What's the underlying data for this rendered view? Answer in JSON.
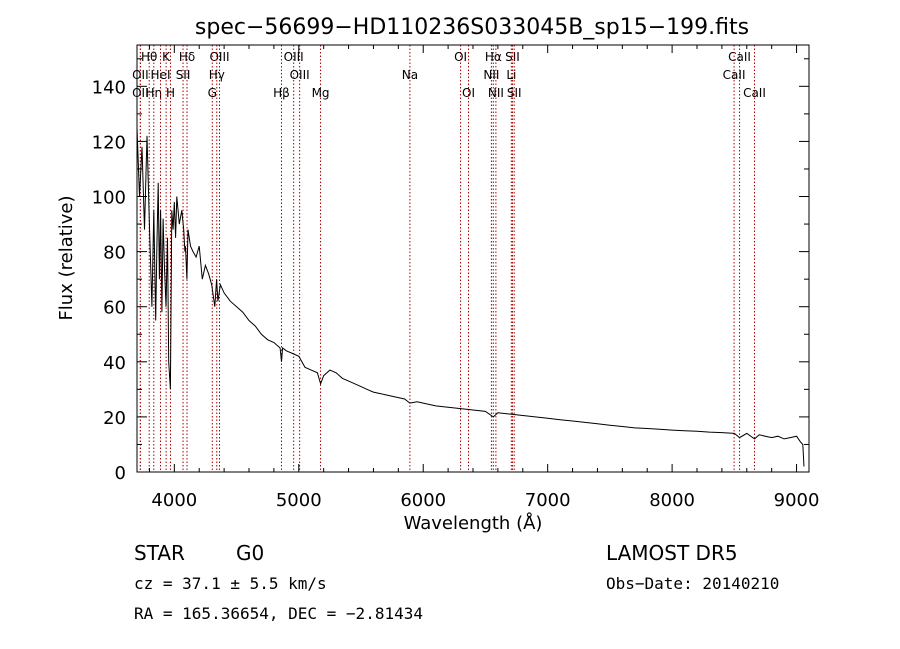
{
  "chart_data": {
    "type": "line",
    "title": "spec−56699−HD110236S033045B_sp15−199.fits",
    "xlabel": "Wavelength (Å)",
    "ylabel": "Flux (relative)",
    "xlim": [
      3700,
      9100
    ],
    "ylim": [
      0,
      155
    ],
    "xticks": [
      4000,
      5000,
      6000,
      7000,
      8000,
      9000
    ],
    "yticks": [
      0,
      20,
      40,
      60,
      80,
      100,
      120,
      140
    ],
    "xtick_labels": [
      "4000",
      "5000",
      "6000",
      "7000",
      "8000",
      "9000"
    ],
    "ytick_labels": [
      "0",
      "20",
      "40",
      "60",
      "80",
      "100",
      "120",
      "140"
    ],
    "grid": false,
    "series": [
      {
        "color": "#000000",
        "x": [
          3700,
          3720,
          3740,
          3760,
          3780,
          3800,
          3820,
          3835,
          3850,
          3860,
          3870,
          3880,
          3890,
          3900,
          3910,
          3920,
          3933,
          3945,
          3955,
          3968,
          3980,
          3990,
          4000,
          4010,
          4020,
          4040,
          4060,
          4075,
          4085,
          4090,
          4101,
          4110,
          4130,
          4150,
          4175,
          4200,
          4225,
          4250,
          4275,
          4300,
          4325,
          4340,
          4350,
          4370,
          4400,
          4450,
          4500,
          4550,
          4600,
          4650,
          4700,
          4750,
          4800,
          4850,
          4861,
          4870,
          4900,
          4950,
          5000,
          5050,
          5100,
          5150,
          5175,
          5200,
          5250,
          5300,
          5350,
          5400,
          5450,
          5500,
          5550,
          5600,
          5650,
          5700,
          5750,
          5800,
          5850,
          5893,
          5950,
          6000,
          6100,
          6200,
          6300,
          6400,
          6500,
          6563,
          6600,
          6700,
          6800,
          6900,
          7000,
          7100,
          7200,
          7300,
          7400,
          7500,
          7600,
          7700,
          7800,
          7900,
          8000,
          8100,
          8200,
          8300,
          8400,
          8500,
          8542,
          8600,
          8662,
          8700,
          8750,
          8800,
          8850,
          8900,
          8950,
          9000,
          9030,
          9050,
          9060
        ],
        "y": [
          125,
          100,
          118,
          88,
          122,
          90,
          60,
          95,
          55,
          82,
          105,
          70,
          95,
          58,
          92,
          75,
          60,
          85,
          40,
          30,
          95,
          88,
          98,
          85,
          100,
          90,
          95,
          88,
          80,
          82,
          70,
          88,
          82,
          80,
          78,
          82,
          70,
          75,
          72,
          68,
          60,
          70,
          62,
          68,
          65,
          62,
          60,
          58,
          55,
          53,
          50,
          48,
          47,
          45,
          40,
          45,
          44,
          43,
          42,
          38,
          37,
          36,
          32,
          35,
          37,
          36,
          34,
          33,
          32,
          31,
          30,
          29,
          28.5,
          28,
          27.5,
          27,
          26.5,
          25,
          25.5,
          25,
          24,
          23.5,
          23,
          22.5,
          22,
          20,
          21.5,
          21,
          20.5,
          20,
          19.5,
          19,
          18.5,
          18,
          17.5,
          17,
          16.5,
          16,
          15.8,
          15.5,
          15.2,
          15,
          14.8,
          14.5,
          14.3,
          14,
          12.5,
          14,
          12,
          13.5,
          13,
          12.5,
          13,
          12,
          12.5,
          13,
          11,
          10,
          2
        ]
      }
    ],
    "line_color": "#aa0000",
    "lines": [
      {
        "label": "Hθ",
        "x": 3798,
        "row": 1
      },
      {
        "label": "OII",
        "x": 3727,
        "row": 2
      },
      {
        "label": "OII",
        "x": 3727,
        "row": 3
      },
      {
        "label": "Hη",
        "x": 3835,
        "row": 3
      },
      {
        "label": "K",
        "x": 3934,
        "row": 1
      },
      {
        "label": "HeI",
        "x": 3889,
        "row": 2
      },
      {
        "label": "H",
        "x": 3969,
        "row": 3
      },
      {
        "label": "Hδ",
        "x": 4102,
        "row": 1
      },
      {
        "label": "SII",
        "x": 4070,
        "row": 2
      },
      {
        "label": "OIII",
        "x": 4363,
        "row": 1
      },
      {
        "label": "Hγ",
        "x": 4341,
        "row": 2
      },
      {
        "label": "G",
        "x": 4305,
        "row": 3
      },
      {
        "label": "OIII",
        "x": 4959,
        "row": 1
      },
      {
        "label": "OIII",
        "x": 5007,
        "row": 2
      },
      {
        "label": "Hβ",
        "x": 4861,
        "row": 3
      },
      {
        "label": "Mg",
        "x": 5175,
        "row": 3
      },
      {
        "label": "Na",
        "x": 5893,
        "row": 2
      },
      {
        "label": "OI",
        "x": 6300,
        "row": 1
      },
      {
        "label": "OI",
        "x": 6364,
        "row": 3
      },
      {
        "label": "Hα",
        "x": 6563,
        "row": 1
      },
      {
        "label": "NII",
        "x": 6548,
        "row": 2
      },
      {
        "label": "NII",
        "x": 6584,
        "row": 3
      },
      {
        "label": "SII",
        "x": 6717,
        "row": 1
      },
      {
        "label": "Li",
        "x": 6708,
        "row": 2
      },
      {
        "label": "SII",
        "x": 6731,
        "row": 3
      },
      {
        "label": "CaII",
        "x": 8542,
        "row": 1
      },
      {
        "label": "CaII",
        "x": 8498,
        "row": 2
      },
      {
        "label": "CaII",
        "x": 8662,
        "row": 3
      }
    ]
  },
  "info": {
    "class": "STAR",
    "subclass": "G0",
    "survey": "LAMOST DR5",
    "cz": "cz = 37.1 ± 5.5 km/s",
    "obs_date": "Obs−Date: 20140210",
    "radec": "RA = 165.36654, DEC =  −2.81434"
  }
}
